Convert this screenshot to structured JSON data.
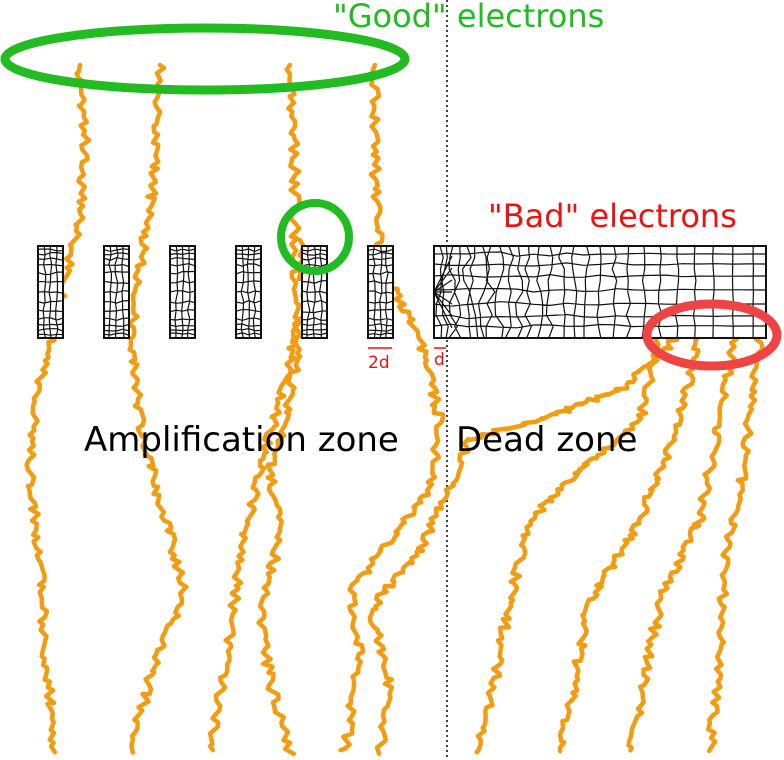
{
  "labels": {
    "good_electrons": "\"Good\" electrons",
    "bad_electrons": "\"Bad\" electrons",
    "amplification_zone": "Amplification zone",
    "dead_zone": "Dead zone",
    "dim_2d": "2d",
    "dim_d": "d"
  },
  "colors": {
    "good": "#22bb22",
    "bad": "#ee1111",
    "track": "#f39c12",
    "mesh": "#111111",
    "divider": "#000000"
  }
}
